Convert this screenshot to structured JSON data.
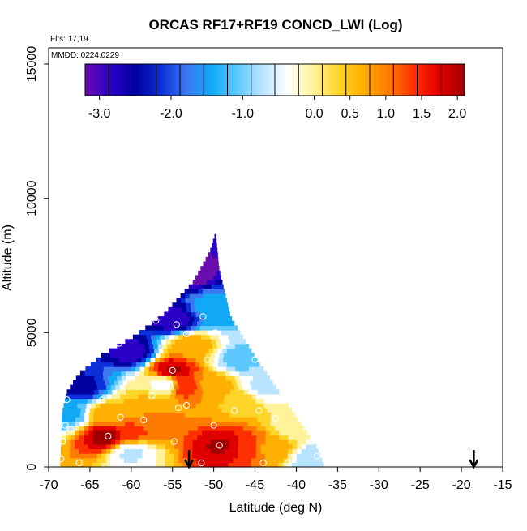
{
  "chart_data": {
    "type": "heatmap",
    "title": "ORCAS RF17+RF19 CONCD_LWI (Log)",
    "annotations": [
      "Flts: 17,19",
      "MMDD: 0224,0229"
    ],
    "xlabel": "Latitude (deg N)",
    "ylabel": "Altitude (m)",
    "xlim": [
      -70,
      -15
    ],
    "ylim": [
      0,
      16000
    ],
    "x_ticks": [
      -70,
      -65,
      -60,
      -55,
      -50,
      -45,
      -40,
      -35,
      -30,
      -25,
      -20,
      -15
    ],
    "y_ticks": [
      0,
      5000,
      10000,
      15000
    ],
    "colorbar": {
      "range": [
        -3.2,
        2.1
      ],
      "ticks": [
        {
          "value": -3.0,
          "label": "-3.0"
        },
        {
          "value": -2.0,
          "label": "-2.0"
        },
        {
          "value": -1.0,
          "label": "-1.0"
        },
        {
          "value": 0.0,
          "label": "0.0"
        },
        {
          "value": 0.5,
          "label": "0.5"
        },
        {
          "value": 1.0,
          "label": "1.0"
        },
        {
          "value": 1.5,
          "label": "1.5"
        },
        {
          "value": 2.0,
          "label": "2.0"
        }
      ],
      "colors": [
        "#6a0dad",
        "#2a00c8",
        "#0000a0",
        "#0b2fd8",
        "#3b78f2",
        "#11a8f5",
        "#5cc8ff",
        "#b8e4ff",
        "#ffffff",
        "#fff29a",
        "#ffd52a",
        "#ffb000",
        "#ff7a00",
        "#ff3000",
        "#e00000",
        "#a00000"
      ]
    },
    "domain": {
      "top_lat": -49.8,
      "top_alt": 8700,
      "left_boundary": [
        [
          -68.6,
          0
        ],
        [
          -68.4,
          2000
        ],
        [
          -67.8,
          2800
        ],
        [
          -66.5,
          3400
        ],
        [
          -63.5,
          4200
        ],
        [
          -60,
          4800
        ],
        [
          -56,
          5700
        ],
        [
          -52.5,
          6900
        ],
        [
          -50.5,
          8000
        ],
        [
          -49.8,
          8700
        ]
      ],
      "right_boundary": [
        [
          -49.8,
          8700
        ],
        [
          -49.4,
          7400
        ],
        [
          -48,
          5600
        ],
        [
          -45,
          4100
        ],
        [
          -41,
          2300
        ],
        [
          -37.5,
          700
        ],
        [
          -36.6,
          0
        ]
      ]
    },
    "field_features": [
      {
        "lat": -63,
        "alt": 1150,
        "value": 1.9
      },
      {
        "lat": -60,
        "alt": 1300,
        "value": 1.2
      },
      {
        "lat": -57,
        "alt": 1800,
        "value": 0.9
      },
      {
        "lat": -55,
        "alt": 3600,
        "value": 1.8
      },
      {
        "lat": -53.5,
        "alt": 3000,
        "value": 1.3
      },
      {
        "lat": -53,
        "alt": 4500,
        "value": 0.7
      },
      {
        "lat": -49,
        "alt": 800,
        "value": 1.8
      },
      {
        "lat": -46,
        "alt": 750,
        "value": 1.3
      },
      {
        "lat": -43,
        "alt": 700,
        "value": 0.7
      },
      {
        "lat": -50,
        "alt": 3000,
        "value": 0.6
      },
      {
        "lat": -47,
        "alt": 2400,
        "value": 0.4
      },
      {
        "lat": -63,
        "alt": 1950,
        "value": 0.6
      },
      {
        "lat": -58,
        "alt": 2300,
        "value": 0.5
      },
      {
        "lat": -60,
        "alt": 550,
        "value": -0.6
      },
      {
        "lat": -56,
        "alt": 3100,
        "value": -0.4
      },
      {
        "lat": -53,
        "alt": 7200,
        "value": -3.0
      },
      {
        "lat": -55,
        "alt": 5500,
        "value": -2.7
      },
      {
        "lat": -60,
        "alt": 4300,
        "value": -2.7
      },
      {
        "lat": -66,
        "alt": 3000,
        "value": -2.3
      },
      {
        "lat": -67.5,
        "alt": 2000,
        "value": -1.3
      },
      {
        "lat": -50,
        "alt": 6000,
        "value": -1.4
      },
      {
        "lat": -47,
        "alt": 4000,
        "value": -1.0
      },
      {
        "lat": -44,
        "alt": 3000,
        "value": -0.6
      },
      {
        "lat": -40,
        "alt": 1500,
        "value": -0.2
      },
      {
        "lat": -38,
        "alt": 300,
        "value": -0.8
      }
    ],
    "samples": [
      {
        "lat": -52.8,
        "alt": 7300
      },
      {
        "lat": -51.3,
        "alt": 5600
      },
      {
        "lat": -49.8,
        "alt": 5000
      },
      {
        "lat": -54.5,
        "alt": 5300
      },
      {
        "lat": -57.0,
        "alt": 5450
      },
      {
        "lat": -53.3,
        "alt": 4950
      },
      {
        "lat": -61.5,
        "alt": 4600
      },
      {
        "lat": -55.0,
        "alt": 3600
      },
      {
        "lat": -50.8,
        "alt": 4000
      },
      {
        "lat": -45.0,
        "alt": 4000
      },
      {
        "lat": -63.5,
        "alt": 2500
      },
      {
        "lat": -67.8,
        "alt": 2500
      },
      {
        "lat": -57.5,
        "alt": 2650
      },
      {
        "lat": -54.3,
        "alt": 2200
      },
      {
        "lat": -53.3,
        "alt": 2300
      },
      {
        "lat": -47.5,
        "alt": 2100
      },
      {
        "lat": -44.5,
        "alt": 2100
      },
      {
        "lat": -61.3,
        "alt": 1850
      },
      {
        "lat": -58.5,
        "alt": 1750
      },
      {
        "lat": -50.0,
        "alt": 1550
      },
      {
        "lat": -42.5,
        "alt": 1800
      },
      {
        "lat": -39.0,
        "alt": 1800
      },
      {
        "lat": -68.0,
        "alt": 1550
      },
      {
        "lat": -67.3,
        "alt": 1400
      },
      {
        "lat": -62.8,
        "alt": 1150
      },
      {
        "lat": -54.8,
        "alt": 950
      },
      {
        "lat": -49.3,
        "alt": 800
      },
      {
        "lat": -68.3,
        "alt": 950
      },
      {
        "lat": -68.5,
        "alt": 300
      },
      {
        "lat": -66.3,
        "alt": 150
      },
      {
        "lat": -62.5,
        "alt": 150
      },
      {
        "lat": -58.0,
        "alt": 150
      },
      {
        "lat": -51.5,
        "alt": 150
      },
      {
        "lat": -44.0,
        "alt": 150
      },
      {
        "lat": -41.0,
        "alt": 150
      },
      {
        "lat": -37.5,
        "alt": 400
      }
    ],
    "markers": [
      {
        "lat": -53,
        "type": "arrow-down"
      },
      {
        "lat": -18.5,
        "type": "arrow-down"
      }
    ],
    "grid": false
  }
}
